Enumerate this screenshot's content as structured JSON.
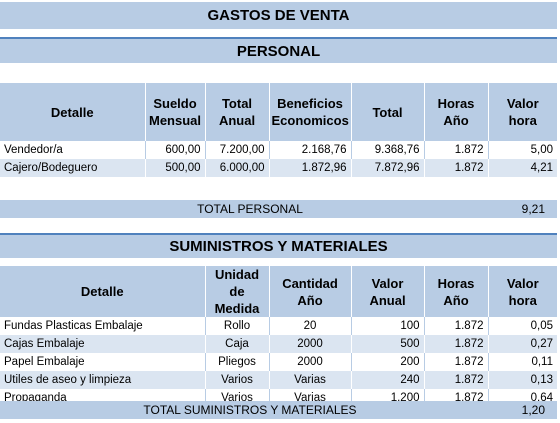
{
  "title": "GASTOS DE VENTA",
  "personal": {
    "title": "PERSONAL",
    "headers": [
      "Detalle",
      "Sueldo\nMensual",
      "Total\nAnual",
      "Beneficios\nEconomicos",
      "Total",
      "Horas\nAño",
      "Valor\nhora"
    ],
    "rows": [
      [
        "Vendedor/a",
        "600,00",
        "7.200,00",
        "2.168,76",
        "9.368,76",
        "1.872",
        "5,00"
      ],
      [
        "Cajero/Bodeguero",
        "500,00",
        "6.000,00",
        "1.872,96",
        "7.872,96",
        "1.872",
        "4,21"
      ]
    ],
    "total_label": "TOTAL PERSONAL",
    "total_value": "9,21"
  },
  "suministros": {
    "title": "SUMINISTROS Y MATERIALES",
    "headers": [
      "Detalle",
      "Unidad de\nMedida",
      "Cantidad\nAño",
      "Valor\nAnual",
      "Horas\nAño",
      "Valor\nhora"
    ],
    "rows": [
      [
        "Fundas Plasticas Embalaje",
        "Rollo",
        "20",
        "100",
        "1.872",
        "0,05"
      ],
      [
        "Cajas Embalaje",
        "Caja",
        "2000",
        "500",
        "1.872",
        "0,27"
      ],
      [
        "Papel Embalaje",
        "Pliegos",
        "2000",
        "200",
        "1.872",
        "0,11"
      ],
      [
        "Utiles de aseo y limpieza",
        "Varios",
        "Varias",
        "240",
        "1.872",
        "0,13"
      ],
      [
        "Propaganda",
        "Varios",
        "Varias",
        "1.200",
        "1.872",
        "0,64"
      ]
    ],
    "total_label": "TOTAL SUMINISTROS Y MATERIALES",
    "total_value": "1,20"
  },
  "colors": {
    "header_fill": "#b8cce4",
    "stripe_fill": "#dbe5f1",
    "accent_line": "#4f81bd"
  }
}
